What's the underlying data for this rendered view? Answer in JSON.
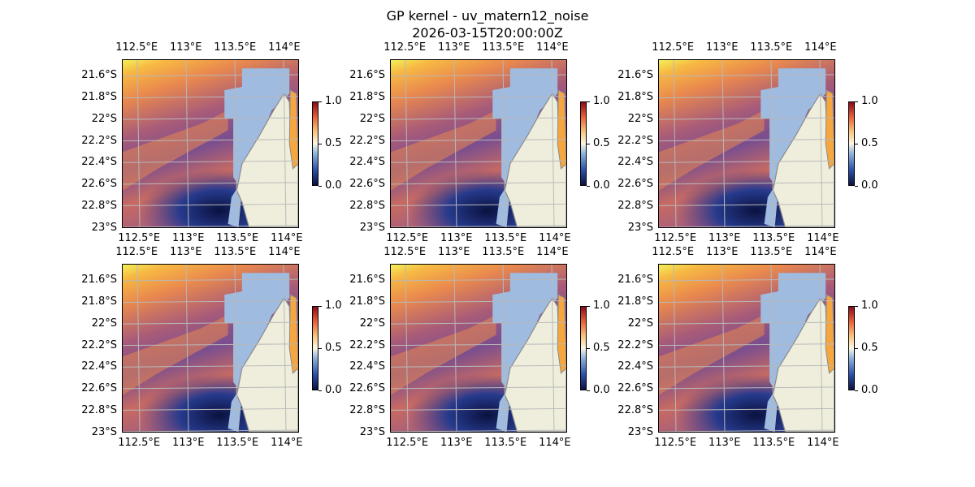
{
  "figure": {
    "title_line1": "GP kernel - uv_matern12_noise",
    "title_line2": "2026-03-15T20:00:00Z"
  },
  "map_extent": {
    "lon": [
      112.35,
      114.15
    ],
    "lat": [
      -23.0,
      -21.45
    ]
  },
  "lon_ticks": [
    "112.5°E",
    "113°E",
    "113.5°E",
    "114°E"
  ],
  "lat_ticks": [
    "21.6°S",
    "21.8°S",
    "22°S",
    "22.2°S",
    "22.4°S",
    "22.6°S",
    "22.8°S",
    "23°S"
  ],
  "colorbar": {
    "ticks": [
      "0.0",
      "0.5",
      "1.0"
    ],
    "range": [
      0.0,
      1.0
    ]
  },
  "colors": {
    "land": "#efeedd",
    "inland_water": "#9fbbe0",
    "coastline": "#8a8a8a",
    "gridline": "#b8b8b8",
    "field_low": "#0b1240",
    "field_mid": "#7a4e8f",
    "field_high": "#f2f057"
  },
  "panels": [
    {
      "id": "panel-1",
      "row": 1,
      "col": 1
    },
    {
      "id": "panel-2",
      "row": 1,
      "col": 2
    },
    {
      "id": "panel-3",
      "row": 1,
      "col": 3
    },
    {
      "id": "panel-4",
      "row": 2,
      "col": 1
    },
    {
      "id": "panel-5",
      "row": 2,
      "col": 2
    },
    {
      "id": "panel-6",
      "row": 2,
      "col": 3
    }
  ]
}
